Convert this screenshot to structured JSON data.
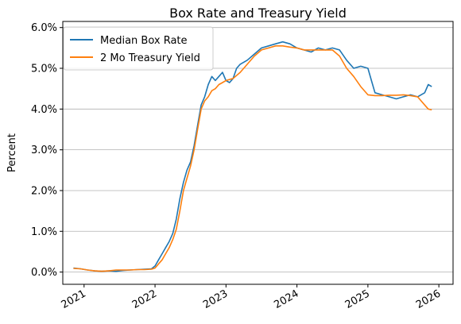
{
  "chart_data": {
    "type": "line",
    "title": "Box Rate and Treasury Yield",
    "xlabel": "",
    "ylabel": "Percent",
    "xlim": [
      2020.7,
      2026.2
    ],
    "ylim": [
      -0.3,
      6.15
    ],
    "x_ticks": [
      "2021",
      "2022",
      "2023",
      "2024",
      "2025",
      "2026"
    ],
    "y_ticks": [
      "0.0%",
      "1.0%",
      "2.0%",
      "3.0%",
      "4.0%",
      "5.0%",
      "6.0%"
    ],
    "grid": "horizontal",
    "legend_placement": "top-left",
    "series": [
      {
        "name": "Median Box Rate",
        "color": "#1f77b4",
        "x": [
          2020.85,
          2020.95,
          2021.05,
          2021.15,
          2021.25,
          2021.35,
          2021.45,
          2021.55,
          2021.65,
          2021.75,
          2021.85,
          2021.95,
          2022.0,
          2022.05,
          2022.1,
          2022.15,
          2022.2,
          2022.25,
          2022.3,
          2022.35,
          2022.4,
          2022.45,
          2022.5,
          2022.55,
          2022.6,
          2022.65,
          2022.7,
          2022.75,
          2022.8,
          2022.85,
          2022.9,
          2022.95,
          2023.0,
          2023.05,
          2023.1,
          2023.15,
          2023.2,
          2023.3,
          2023.4,
          2023.5,
          2023.6,
          2023.7,
          2023.8,
          2023.9,
          2024.0,
          2024.1,
          2024.2,
          2024.3,
          2024.4,
          2024.5,
          2024.6,
          2024.7,
          2024.8,
          2024.9,
          2025.0,
          2025.05,
          2025.1,
          2025.2,
          2025.3,
          2025.4,
          2025.5,
          2025.6,
          2025.7,
          2025.8,
          2025.85,
          2025.9
        ],
        "y": [
          0.1,
          0.08,
          0.05,
          0.03,
          0.02,
          0.03,
          0.02,
          0.04,
          0.05,
          0.06,
          0.07,
          0.08,
          0.15,
          0.3,
          0.45,
          0.6,
          0.75,
          0.95,
          1.3,
          1.8,
          2.2,
          2.5,
          2.7,
          3.1,
          3.6,
          4.1,
          4.3,
          4.6,
          4.8,
          4.7,
          4.8,
          4.9,
          4.7,
          4.65,
          4.75,
          5.0,
          5.1,
          5.2,
          5.35,
          5.5,
          5.55,
          5.6,
          5.65,
          5.6,
          5.5,
          5.45,
          5.4,
          5.5,
          5.45,
          5.5,
          5.45,
          5.2,
          5.0,
          5.05,
          5.0,
          4.7,
          4.4,
          4.35,
          4.3,
          4.25,
          4.3,
          4.35,
          4.3,
          4.4,
          4.6,
          4.55
        ]
      },
      {
        "name": "2 Mo Treasury Yield",
        "color": "#ff7f0e",
        "x": [
          2020.85,
          2020.95,
          2021.05,
          2021.15,
          2021.25,
          2021.35,
          2021.45,
          2021.55,
          2021.65,
          2021.75,
          2021.85,
          2021.95,
          2022.0,
          2022.05,
          2022.1,
          2022.15,
          2022.2,
          2022.25,
          2022.3,
          2022.35,
          2022.4,
          2022.45,
          2022.5,
          2022.55,
          2022.6,
          2022.65,
          2022.7,
          2022.75,
          2022.8,
          2022.85,
          2022.9,
          2022.95,
          2023.0,
          2023.1,
          2023.2,
          2023.3,
          2023.4,
          2023.5,
          2023.6,
          2023.7,
          2023.8,
          2023.9,
          2024.0,
          2024.1,
          2024.2,
          2024.3,
          2024.4,
          2024.5,
          2024.6,
          2024.7,
          2024.8,
          2024.9,
          2025.0,
          2025.1,
          2025.2,
          2025.3,
          2025.4,
          2025.5,
          2025.6,
          2025.7,
          2025.8,
          2025.85,
          2025.9
        ],
        "y": [
          0.09,
          0.08,
          0.05,
          0.03,
          0.02,
          0.03,
          0.05,
          0.05,
          0.05,
          0.06,
          0.06,
          0.07,
          0.1,
          0.2,
          0.3,
          0.45,
          0.6,
          0.8,
          1.05,
          1.5,
          2.0,
          2.3,
          2.6,
          3.0,
          3.5,
          4.0,
          4.2,
          4.3,
          4.45,
          4.5,
          4.6,
          4.65,
          4.7,
          4.75,
          4.9,
          5.1,
          5.3,
          5.45,
          5.5,
          5.55,
          5.55,
          5.52,
          5.5,
          5.45,
          5.45,
          5.45,
          5.45,
          5.45,
          5.3,
          5.0,
          4.8,
          4.55,
          4.35,
          4.33,
          4.33,
          4.34,
          4.34,
          4.35,
          4.33,
          4.3,
          4.1,
          4.0,
          3.98
        ]
      }
    ]
  }
}
